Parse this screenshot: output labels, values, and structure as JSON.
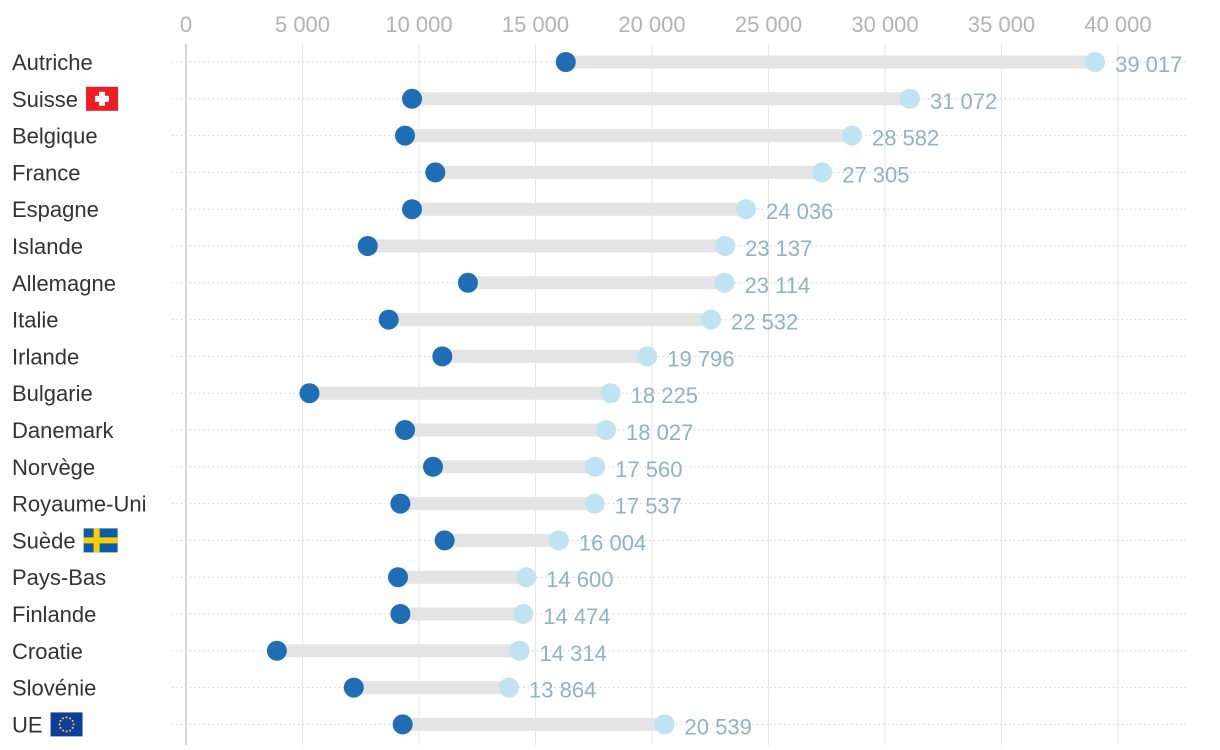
{
  "chart_data": {
    "type": "dumbbell",
    "title": "",
    "xlabel": "",
    "ylabel": "",
    "xlim": [
      0,
      40000
    ],
    "x_ticks": [
      0,
      5000,
      10000,
      15000,
      20000,
      25000,
      30000,
      35000,
      40000
    ],
    "x_tick_labels": [
      "0",
      "5 000",
      "10 000",
      "15 000",
      "20 000",
      "25 000",
      "30 000",
      "35 000",
      "40 000"
    ],
    "grid": true,
    "categories": [
      "Autriche",
      "Suisse",
      "Belgique",
      "France",
      "Espagne",
      "Islande",
      "Allemagne",
      "Italie",
      "Irlande",
      "Bulgarie",
      "Danemark",
      "Norvège",
      "Royaume-Uni",
      "Suède",
      "Pays-Bas",
      "Finlande",
      "Croatie",
      "Slovénie",
      "UE"
    ],
    "series": [
      {
        "values": [
          16300,
          9700,
          9400,
          10700,
          9700,
          7800,
          12100,
          8700,
          11000,
          5300,
          9400,
          10600,
          9200,
          11100,
          9100,
          9200,
          3900,
          7200,
          9300
        ]
      },
      {
        "values": [
          39017,
          31072,
          28582,
          27305,
          24036,
          23137,
          23114,
          22532,
          19796,
          18225,
          18027,
          17560,
          17537,
          16004,
          14600,
          14474,
          14314,
          13864,
          20539
        ]
      }
    ],
    "value_labels": [
      "39 017",
      "31 072",
      "28 582",
      "27 305",
      "24 036",
      "23 137",
      "23 114",
      "22 532",
      "19 796",
      "18 225",
      "18 027",
      "17 560",
      "17 537",
      "16 004",
      "14 600",
      "14 474",
      "14 314",
      "13 864",
      "20 539"
    ],
    "flags": {
      "Suisse": "swiss-flag",
      "Suède": "swedish-flag",
      "UE": "eu-flag"
    },
    "colors": {
      "start_dot": "#1f6db5",
      "end_dot": "#bfe3f2",
      "bar": "#e4e4e4",
      "gridline": "#e6e6e6",
      "value_label": "#8fb3c3",
      "category_label": "#333333",
      "tick_label": "#b3b3b3"
    }
  }
}
